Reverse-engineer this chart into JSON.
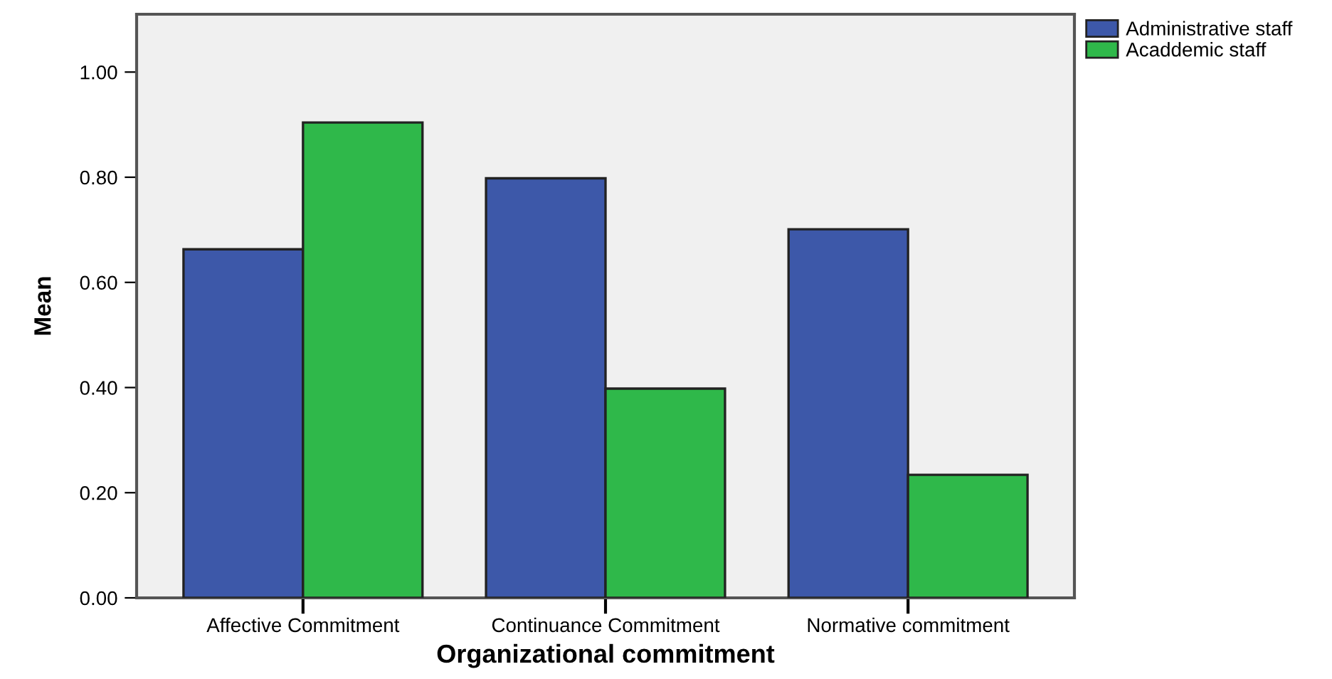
{
  "chart_data": {
    "type": "bar",
    "xlabel": "Organizational commitment",
    "ylabel": "Mean",
    "categories": [
      "Affective Commitment",
      "Continuance Commitment",
      "Normative commitment"
    ],
    "series": [
      {
        "name": "Administrative staff",
        "color": "#3d58a9",
        "values": [
          0.663,
          0.798,
          0.701
        ]
      },
      {
        "name": "Acaddemic staff",
        "color": "#2fb84a",
        "values": [
          0.904,
          0.398,
          0.234
        ]
      }
    ],
    "ylim": [
      0,
      1.11
    ],
    "yticks": [
      {
        "value": 0,
        "label": "0.00"
      },
      {
        "value": 0.2,
        "label": "0.20"
      },
      {
        "value": 0.4,
        "label": "0.40"
      },
      {
        "value": 0.6,
        "label": "0.60"
      },
      {
        "value": 0.8,
        "label": "0.80"
      },
      {
        "value": 1.0,
        "label": "1.00"
      }
    ],
    "grid": false,
    "legend": "top right"
  }
}
